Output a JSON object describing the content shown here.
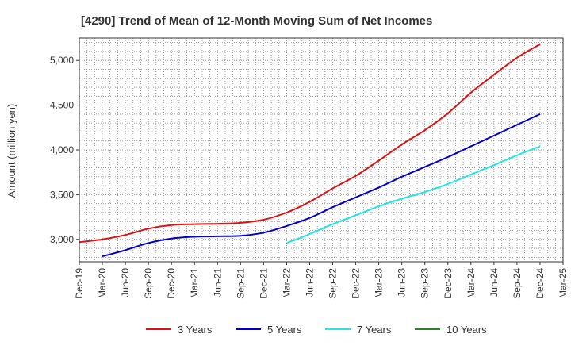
{
  "chart_data": {
    "type": "line",
    "title": "[4290]  Trend of Mean of 12-Month Moving Sum of Net Incomes",
    "ylabel": "Amount (million yen)",
    "xlabel": "",
    "ylim": [
      2750,
      5250
    ],
    "yticks": [
      3000,
      3500,
      4000,
      4500,
      5000
    ],
    "ytick_labels": [
      "3,000",
      "3,500",
      "4,000",
      "4,500",
      "5,000"
    ],
    "xticks": [
      "Dec-19",
      "Mar-20",
      "Jun-20",
      "Sep-20",
      "Dec-20",
      "Mar-21",
      "Jun-21",
      "Sep-21",
      "Dec-21",
      "Mar-22",
      "Jun-22",
      "Sep-22",
      "Dec-22",
      "Mar-23",
      "Jun-23",
      "Sep-23",
      "Dec-23",
      "Mar-24",
      "Jun-24",
      "Sep-24",
      "Dec-24",
      "Mar-25"
    ],
    "grid": true,
    "legend_position": "bottom",
    "series": [
      {
        "name": "3 Years",
        "color": "#dd1111",
        "points": [
          [
            "Dec-19",
            2970
          ],
          [
            "Mar-20",
            3000
          ],
          [
            "Jun-20",
            3050
          ],
          [
            "Sep-20",
            3120
          ],
          [
            "Dec-20",
            3160
          ],
          [
            "Mar-21",
            3170
          ],
          [
            "Jun-21",
            3175
          ],
          [
            "Sep-21",
            3185
          ],
          [
            "Dec-21",
            3220
          ],
          [
            "Mar-22",
            3300
          ],
          [
            "Jun-22",
            3420
          ],
          [
            "Sep-22",
            3570
          ],
          [
            "Dec-22",
            3710
          ],
          [
            "Mar-23",
            3880
          ],
          [
            "Jun-23",
            4060
          ],
          [
            "Sep-23",
            4220
          ],
          [
            "Dec-23",
            4410
          ],
          [
            "Mar-24",
            4640
          ],
          [
            "Jun-24",
            4840
          ],
          [
            "Sep-24",
            5030
          ],
          [
            "Dec-24",
            5180
          ]
        ]
      },
      {
        "name": "5 Years",
        "color": "#0000cc",
        "points": [
          [
            "Mar-20",
            2810
          ],
          [
            "Jun-20",
            2880
          ],
          [
            "Sep-20",
            2960
          ],
          [
            "Dec-20",
            3010
          ],
          [
            "Mar-21",
            3030
          ],
          [
            "Jun-21",
            3035
          ],
          [
            "Sep-21",
            3040
          ],
          [
            "Dec-21",
            3075
          ],
          [
            "Mar-22",
            3150
          ],
          [
            "Jun-22",
            3240
          ],
          [
            "Sep-22",
            3360
          ],
          [
            "Dec-22",
            3470
          ],
          [
            "Mar-23",
            3580
          ],
          [
            "Jun-23",
            3700
          ],
          [
            "Sep-23",
            3810
          ],
          [
            "Dec-23",
            3920
          ],
          [
            "Mar-24",
            4040
          ],
          [
            "Jun-24",
            4160
          ],
          [
            "Sep-24",
            4280
          ],
          [
            "Dec-24",
            4400
          ]
        ]
      },
      {
        "name": "7 Years",
        "color": "#22e5e5",
        "points": [
          [
            "Mar-22",
            2960
          ],
          [
            "Jun-22",
            3060
          ],
          [
            "Sep-22",
            3170
          ],
          [
            "Dec-22",
            3270
          ],
          [
            "Mar-23",
            3370
          ],
          [
            "Jun-23",
            3455
          ],
          [
            "Sep-23",
            3530
          ],
          [
            "Dec-23",
            3620
          ],
          [
            "Mar-24",
            3725
          ],
          [
            "Jun-24",
            3830
          ],
          [
            "Sep-24",
            3940
          ],
          [
            "Dec-24",
            4040
          ]
        ]
      },
      {
        "name": "10 Years",
        "color": "#228822",
        "points": []
      }
    ]
  }
}
